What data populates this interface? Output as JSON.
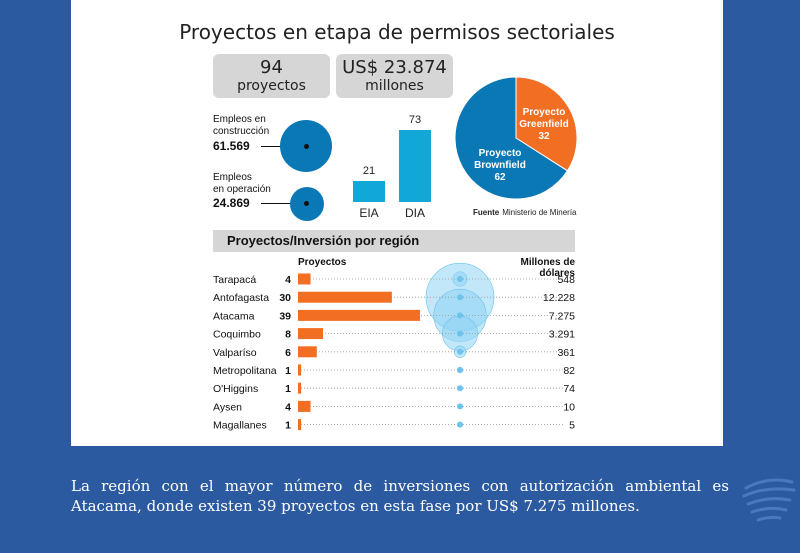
{
  "title": "Proyectos en etapa de permisos sectoriales",
  "summary": {
    "projects_count": "94",
    "projects_label": "proyectos",
    "investment_amount": "US$ 23.874",
    "investment_unit": "millones"
  },
  "employment": {
    "construction_label_1": "Empleos en",
    "construction_label_2": "construcción",
    "construction_value": "61.569",
    "operation_label_1": "Empleos",
    "operation_label_2": "en operación",
    "operation_value": "24.869"
  },
  "source": {
    "label": "Fuente",
    "text": "Ministerio de Minería"
  },
  "section_title": "Proyectos/Inversión por región",
  "region_headers": {
    "projects": "Proyectos",
    "investment": "Millones de dólares"
  },
  "caption": "La región con el mayor número de inversiones con autorización ambiental es Atacama, donde existen 39 proyectos en esta fase por US$ 7.275 millones.",
  "colors": {
    "background": "#2c5aa0",
    "orange": "#f26e22",
    "blue": "#0b78b6",
    "light_blue": "#11a8d8",
    "bubble": "#8fd3f4"
  },
  "chart_data": [
    {
      "type": "bar",
      "categories": [
        "EIA",
        "DIA"
      ],
      "values": [
        21,
        73
      ]
    },
    {
      "type": "pie",
      "slices": [
        {
          "label_1": "Proyecto",
          "label_2": "Greenfield",
          "value": 32,
          "color": "#f26e22"
        },
        {
          "label_1": "Proyecto",
          "label_2": "Brownfield",
          "value": 62,
          "color": "#0b78b6"
        }
      ]
    },
    {
      "type": "bar",
      "title": "Proyectos/Inversión por región",
      "categories": [
        "Tarapacá",
        "Antofagasta",
        "Atacama",
        "Coquimbo",
        "Valparíso",
        "Metropolitana",
        "O'Higgins",
        "Aysen",
        "Magallanes"
      ],
      "series": [
        {
          "name": "Proyectos",
          "values": [
            4,
            30,
            39,
            8,
            6,
            1,
            1,
            4,
            1
          ]
        },
        {
          "name": "Millones de dólares",
          "values": [
            548,
            12228,
            7275,
            3291,
            361,
            82,
            74,
            10,
            5
          ],
          "display": [
            "548",
            "12.228",
            "7.275",
            "3.291",
            "361",
            "82",
            "74",
            "10",
            "5"
          ]
        }
      ]
    }
  ]
}
